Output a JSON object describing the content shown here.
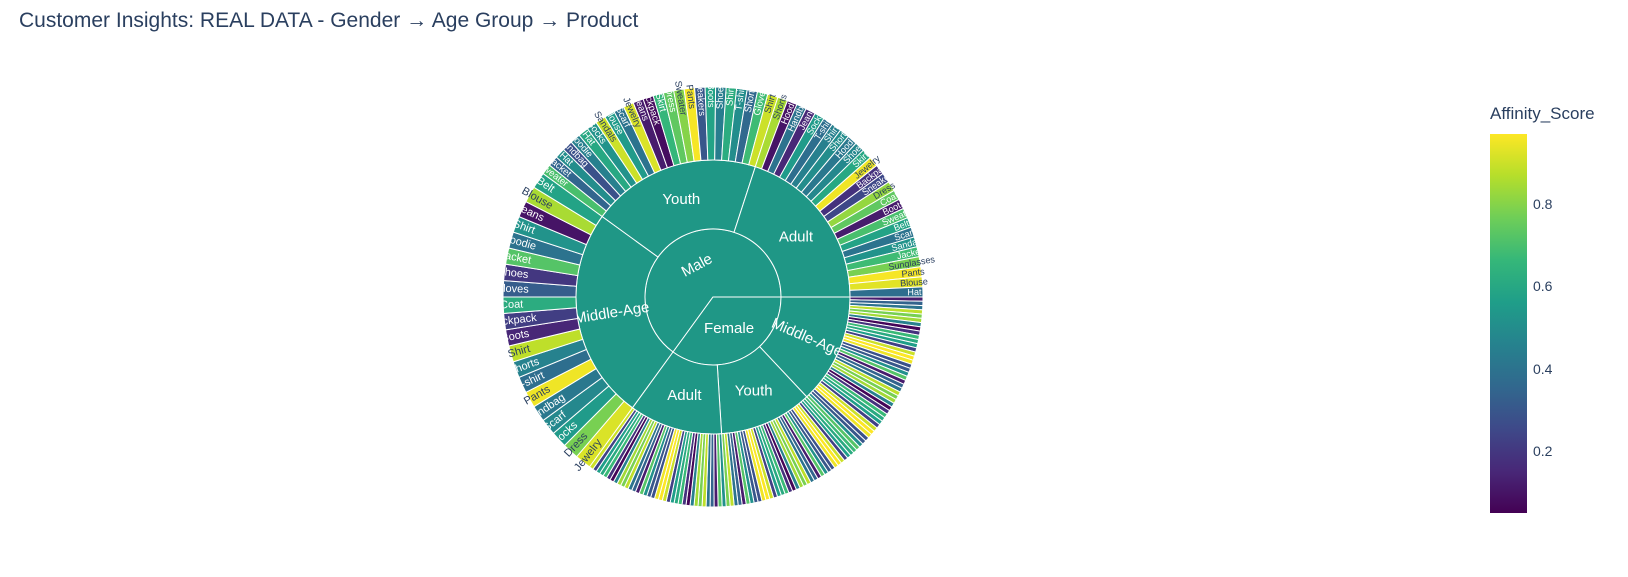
{
  "title": "Customer Insights: REAL DATA - Gender → Age Group → Product",
  "colorbar": {
    "title": "Affinity_Score",
    "ticks": [
      "0.2",
      "0.4",
      "0.6",
      "0.8"
    ],
    "tick_values": [
      0.2,
      0.4,
      0.6,
      0.8
    ],
    "range": [
      0.05,
      0.97
    ],
    "colors": [
      "#440154",
      "#482878",
      "#3e4989",
      "#31688e",
      "#26828e",
      "#1f9e89",
      "#35b779",
      "#6ece58",
      "#b5de2b",
      "#fde725"
    ]
  },
  "chart_data": {
    "type": "sunburst",
    "title": "Customer Insights: REAL DATA - Gender → Age Group → Product",
    "color_variable": "Affinity_Score",
    "parent_color": "#1f9786",
    "root": [
      {
        "name": "Male",
        "share": 0.65,
        "children": [
          {
            "name": "Middle-Age",
            "share": 0.25,
            "products": [
              {
                "name": "Jewelry",
                "score": 0.92
              },
              {
                "name": "Dress",
                "score": 0.78
              },
              {
                "name": "Socks",
                "score": 0.55
              },
              {
                "name": "Scarf",
                "score": 0.48
              },
              {
                "name": "Handbag",
                "score": 0.42
              },
              {
                "name": "Pants",
                "score": 0.95
              },
              {
                "name": "T-shirt",
                "score": 0.38
              },
              {
                "name": "Shorts",
                "score": 0.46
              },
              {
                "name": "Shirt",
                "score": 0.88
              },
              {
                "name": "Boots",
                "score": 0.15
              },
              {
                "name": "Backpack",
                "score": 0.22
              },
              {
                "name": "Coat",
                "score": 0.62
              },
              {
                "name": "Gloves",
                "score": 0.32
              },
              {
                "name": "Shoes",
                "score": 0.2
              },
              {
                "name": "Jacket",
                "score": 0.72
              },
              {
                "name": "Hoodie",
                "score": 0.4
              },
              {
                "name": "Shirt",
                "score": 0.52
              },
              {
                "name": "Jeans",
                "score": 0.1
              },
              {
                "name": "Blouse",
                "score": 0.85
              },
              {
                "name": "Belt",
                "score": 0.58
              }
            ]
          },
          {
            "name": "Youth",
            "share": 0.2,
            "products": [
              {
                "name": "Sweater",
                "score": 0.7
              },
              {
                "name": "Jacket",
                "score": 0.35
              },
              {
                "name": "Hat",
                "score": 0.5
              },
              {
                "name": "Handbag",
                "score": 0.28
              },
              {
                "name": "Hoodie",
                "score": 0.45
              },
              {
                "name": "Hat",
                "score": 0.6
              },
              {
                "name": "Socks",
                "score": 0.52
              },
              {
                "name": "Sandals",
                "score": 0.9
              },
              {
                "name": "Blouse",
                "score": 0.55
              },
              {
                "name": "Scarf",
                "score": 0.4
              },
              {
                "name": "Jewelry",
                "score": 0.92
              },
              {
                "name": "Jeans",
                "score": 0.12
              },
              {
                "name": "Backpack",
                "score": 0.08
              },
              {
                "name": "Skirt",
                "score": 0.66
              },
              {
                "name": "Dress",
                "score": 0.74
              },
              {
                "name": "Sweater",
                "score": 0.8
              },
              {
                "name": "Pants",
                "score": 0.96
              },
              {
                "name": "Sneakers",
                "score": 0.3
              },
              {
                "name": "Boots",
                "score": 0.58
              },
              {
                "name": "Shoes",
                "score": 0.44
              },
              {
                "name": "Shirt",
                "score": 0.62
              },
              {
                "name": "T-shirt",
                "score": 0.5
              },
              {
                "name": "Shorts",
                "score": 0.36
              },
              {
                "name": "Gloves",
                "score": 0.68
              },
              {
                "name": "Shirt",
                "score": 0.9
              }
            ]
          },
          {
            "name": "Adult",
            "share": 0.2,
            "products": [
              {
                "name": "Shorts",
                "score": 0.85
              },
              {
                "name": "Hoodie",
                "score": 0.1
              },
              {
                "name": "Handbag",
                "score": 0.4
              },
              {
                "name": "Jeans",
                "score": 0.15
              },
              {
                "name": "Socks",
                "score": 0.55
              },
              {
                "name": "T-shirt",
                "score": 0.38
              },
              {
                "name": "Shirt",
                "score": 0.45
              },
              {
                "name": "Shorts",
                "score": 0.5
              },
              {
                "name": "Hoodie",
                "score": 0.42
              },
              {
                "name": "Shoes",
                "score": 0.48
              },
              {
                "name": "Skirt",
                "score": 0.6
              },
              {
                "name": "Jewelry",
                "score": 0.95
              },
              {
                "name": "Backpack",
                "score": 0.18
              },
              {
                "name": "Sneakers",
                "score": 0.25
              },
              {
                "name": "Dress",
                "score": 0.82
              },
              {
                "name": "Coat",
                "score": 0.74
              },
              {
                "name": "Boots",
                "score": 0.12
              },
              {
                "name": "Sweater",
                "score": 0.7
              },
              {
                "name": "Belt",
                "score": 0.58
              },
              {
                "name": "Scarf",
                "score": 0.4
              },
              {
                "name": "Sandals",
                "score": 0.52
              },
              {
                "name": "Jacket",
                "score": 0.68
              },
              {
                "name": "Sunglasses",
                "score": 0.78
              },
              {
                "name": "Pants",
                "score": 0.96
              },
              {
                "name": "Blouse",
                "score": 0.93
              },
              {
                "name": "Hat",
                "score": 0.38
              }
            ]
          }
        ]
      },
      {
        "name": "Female",
        "share": 0.35,
        "children": [
          {
            "name": "Middle-Age",
            "share": 0.13,
            "leaf_count": 40
          },
          {
            "name": "Youth",
            "share": 0.11,
            "leaf_count": 36
          },
          {
            "name": "Adult",
            "share": 0.11,
            "leaf_count": 36
          }
        ]
      }
    ]
  }
}
